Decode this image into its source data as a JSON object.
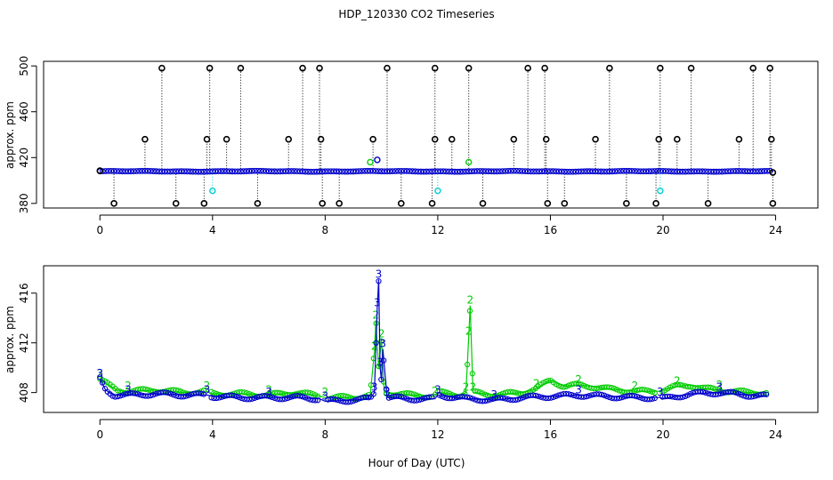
{
  "title": "HDP_120330  CO2 Timeseries",
  "xlabel": "Hour of Day (UTC)",
  "colors": {
    "series1": "#000000",
    "series2": "#00cc00",
    "series3": "#0000cc",
    "accent": "#00cccc"
  },
  "chart_data": [
    {
      "type": "scatter",
      "name": "top-panel",
      "ylabel": "approx. ppm",
      "xlim": [
        -2,
        25.5
      ],
      "ylim": [
        376,
        504
      ],
      "xticks": [
        "0",
        "4",
        "8",
        "12",
        "16",
        "20",
        "24"
      ],
      "yticks": [
        "380",
        "420",
        "460",
        "500"
      ],
      "baseline": 408,
      "spikes_high": [
        [
          1.6,
          436
        ],
        [
          2.2,
          498
        ],
        [
          3.8,
          436
        ],
        [
          3.9,
          498
        ],
        [
          4.5,
          436
        ],
        [
          5.0,
          498
        ],
        [
          6.7,
          436
        ],
        [
          7.2,
          498
        ],
        [
          7.8,
          498
        ],
        [
          7.85,
          436
        ],
        [
          9.7,
          436
        ],
        [
          10.2,
          498
        ],
        [
          11.9,
          436
        ],
        [
          11.9,
          498
        ],
        [
          12.5,
          436
        ],
        [
          13.1,
          498
        ],
        [
          14.7,
          436
        ],
        [
          15.2,
          498
        ],
        [
          15.8,
          498
        ],
        [
          15.85,
          436
        ],
        [
          17.6,
          436
        ],
        [
          18.1,
          498
        ],
        [
          19.85,
          436
        ],
        [
          19.9,
          498
        ],
        [
          20.5,
          436
        ],
        [
          21.0,
          498
        ],
        [
          22.7,
          436
        ],
        [
          23.2,
          498
        ],
        [
          23.8,
          498
        ],
        [
          23.85,
          436
        ]
      ],
      "spikes_low": [
        [
          0.5,
          380
        ],
        [
          2.7,
          380
        ],
        [
          3.7,
          380
        ],
        [
          5.6,
          380
        ],
        [
          7.9,
          380
        ],
        [
          8.5,
          380
        ],
        [
          10.7,
          380
        ],
        [
          11.8,
          380
        ],
        [
          13.6,
          380
        ],
        [
          15.9,
          380
        ],
        [
          16.5,
          380
        ],
        [
          18.7,
          380
        ],
        [
          19.75,
          380
        ],
        [
          21.6,
          380
        ],
        [
          23.9,
          380
        ]
      ],
      "cyan_points": [
        [
          4.0,
          391
        ],
        [
          12.0,
          391
        ],
        [
          19.9,
          391
        ]
      ],
      "green_points": [
        [
          9.6,
          416
        ],
        [
          13.1,
          416
        ]
      ],
      "blue_points": [
        [
          9.85,
          418
        ]
      ]
    },
    {
      "type": "line",
      "name": "bottom-panel",
      "ylabel": "approx. ppm",
      "xlim": [
        -2,
        25.5
      ],
      "ylim": [
        406.4,
        418.2
      ],
      "xticks": [
        "0",
        "4",
        "8",
        "12",
        "16",
        "20",
        "24"
      ],
      "yticks": [
        "408",
        "412",
        "416"
      ],
      "series": [
        {
          "name": "2",
          "label": "2",
          "points": [
            [
              0,
              409.1
            ],
            [
              0.3,
              408.6
            ],
            [
              0.6,
              408.2
            ],
            [
              1.0,
              408.1
            ],
            [
              2.0,
              408.2
            ],
            [
              3.0,
              408.0
            ],
            [
              3.8,
              408.1
            ],
            [
              4.0,
              407.9
            ],
            [
              5.0,
              407.9
            ],
            [
              6.0,
              407.8
            ],
            [
              7.0,
              408.0
            ],
            [
              7.8,
              407.7
            ],
            [
              8.0,
              407.6
            ],
            [
              9.0,
              407.6
            ],
            [
              9.6,
              407.8
            ],
            [
              9.75,
              411.3
            ],
            [
              9.8,
              413.8
            ],
            [
              9.9,
              410.0
            ],
            [
              10.0,
              412.3
            ],
            [
              10.1,
              408.0
            ],
            [
              11.0,
              407.8
            ],
            [
              11.9,
              407.7
            ],
            [
              12.0,
              408.0
            ],
            [
              12.8,
              407.8
            ],
            [
              13.0,
              408.0
            ],
            [
              13.1,
              412.5
            ],
            [
              13.15,
              415.0
            ],
            [
              13.25,
              408.0
            ],
            [
              14.0,
              407.8
            ],
            [
              15.0,
              408.0
            ],
            [
              15.5,
              408.3
            ],
            [
              16.0,
              409.0
            ],
            [
              16.5,
              408.5
            ],
            [
              17.0,
              408.6
            ],
            [
              17.5,
              408.5
            ],
            [
              18.0,
              408.3
            ],
            [
              19.0,
              408.1
            ],
            [
              19.9,
              408.1
            ],
            [
              20.0,
              408.2
            ],
            [
              20.5,
              408.5
            ],
            [
              21.0,
              408.6
            ],
            [
              21.5,
              408.3
            ],
            [
              22.0,
              408.2
            ],
            [
              23.0,
              408.0
            ],
            [
              23.7,
              408.0
            ]
          ]
        },
        {
          "name": "3",
          "label": "3",
          "points": [
            [
              0,
              409.1
            ],
            [
              0.2,
              408.2
            ],
            [
              0.5,
              407.8
            ],
            [
              1.0,
              407.8
            ],
            [
              2.0,
              407.9
            ],
            [
              3.0,
              407.8
            ],
            [
              3.8,
              407.8
            ],
            [
              4.0,
              407.7
            ],
            [
              5.0,
              407.6
            ],
            [
              6.0,
              407.6
            ],
            [
              7.0,
              407.6
            ],
            [
              7.8,
              407.5
            ],
            [
              8.0,
              407.3
            ],
            [
              9.0,
              407.4
            ],
            [
              9.6,
              407.5
            ],
            [
              9.75,
              408.0
            ],
            [
              9.85,
              414.8
            ],
            [
              9.9,
              417.1
            ],
            [
              9.95,
              410.0
            ],
            [
              10.0,
              409.0
            ],
            [
              10.05,
              411.5
            ],
            [
              10.2,
              407.6
            ],
            [
              11.0,
              407.5
            ],
            [
              11.9,
              407.5
            ],
            [
              12.0,
              407.8
            ],
            [
              13.0,
              407.5
            ],
            [
              13.2,
              407.5
            ],
            [
              14.0,
              407.4
            ],
            [
              15.0,
              407.6
            ],
            [
              16.0,
              407.7
            ],
            [
              17.0,
              407.8
            ],
            [
              18.0,
              407.7
            ],
            [
              19.0,
              407.6
            ],
            [
              19.9,
              407.6
            ],
            [
              20.0,
              407.5
            ],
            [
              21.0,
              407.9
            ],
            [
              22.0,
              408.0
            ],
            [
              23.0,
              407.8
            ],
            [
              23.7,
              407.7
            ]
          ]
        }
      ]
    }
  ]
}
